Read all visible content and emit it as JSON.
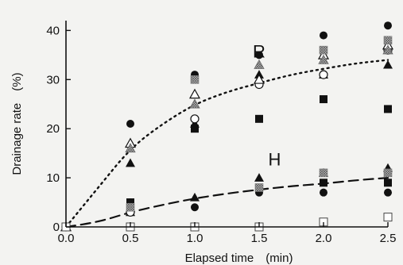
{
  "chart_data": {
    "type": "scatter",
    "xlabel": "Elapsed time　(min)",
    "ylabel": "Drainage rate　(%)",
    "xlim": [
      0,
      2.5
    ],
    "ylim": [
      0,
      42
    ],
    "x_ticks": [
      "0.0",
      "0.5",
      "1.0",
      "1.5",
      "2.0",
      "2.5"
    ],
    "y_ticks": [
      "0",
      "10",
      "20",
      "30",
      "40"
    ],
    "grid": false,
    "legend": "none",
    "series": [
      {
        "marker": "filled-circle",
        "color": "#111111",
        "points": [
          [
            0,
            0
          ],
          [
            0.5,
            21
          ],
          [
            0.5,
            5
          ],
          [
            1.0,
            31
          ],
          [
            1.0,
            4
          ],
          [
            1.5,
            35
          ],
          [
            1.5,
            7
          ],
          [
            2.0,
            39
          ],
          [
            2.0,
            7
          ],
          [
            2.5,
            41
          ],
          [
            2.5,
            7
          ]
        ]
      },
      {
        "marker": "filled-triangle",
        "color": "#111111",
        "points": [
          [
            0,
            0
          ],
          [
            0.5,
            13
          ],
          [
            0.5,
            3
          ],
          [
            1.0,
            21
          ],
          [
            1.0,
            6
          ],
          [
            1.5,
            31
          ],
          [
            1.5,
            10
          ],
          [
            2.0,
            31
          ],
          [
            2.0,
            11
          ],
          [
            2.5,
            33
          ],
          [
            2.5,
            12
          ]
        ]
      },
      {
        "marker": "filled-square",
        "color": "#111111",
        "points": [
          [
            0,
            0
          ],
          [
            0.5,
            5
          ],
          [
            1.0,
            20
          ],
          [
            1.5,
            22
          ],
          [
            2.0,
            26
          ],
          [
            2.0,
            9
          ],
          [
            2.5,
            24
          ],
          [
            2.5,
            9
          ]
        ]
      },
      {
        "marker": "open-circle",
        "color": "#111111",
        "points": [
          [
            0,
            0
          ],
          [
            0.5,
            3
          ],
          [
            1.0,
            22
          ],
          [
            1.5,
            29
          ],
          [
            2.0,
            31
          ],
          [
            2.5,
            36
          ]
        ]
      },
      {
        "marker": "open-triangle",
        "color": "#111111",
        "points": [
          [
            0,
            0
          ],
          [
            0.5,
            17
          ],
          [
            1.0,
            27
          ],
          [
            1.5,
            30
          ],
          [
            2.0,
            35
          ],
          [
            2.5,
            37
          ]
        ]
      },
      {
        "marker": "hatched-square",
        "color": "#777777",
        "points": [
          [
            0,
            0
          ],
          [
            0.5,
            4
          ],
          [
            1.0,
            30
          ],
          [
            1.5,
            8
          ],
          [
            2.0,
            36
          ],
          [
            2.0,
            11
          ],
          [
            2.5,
            38
          ],
          [
            2.5,
            11
          ]
        ]
      },
      {
        "marker": "open-square",
        "color": "#111111",
        "points": [
          [
            0,
            0
          ],
          [
            0.5,
            0
          ],
          [
            1.0,
            0
          ],
          [
            1.5,
            0
          ],
          [
            2.0,
            1
          ],
          [
            2.5,
            2
          ]
        ]
      },
      {
        "marker": "hatched-triangle",
        "color": "#777777",
        "points": [
          [
            0.5,
            16
          ],
          [
            1.0,
            25
          ],
          [
            1.5,
            33
          ],
          [
            2.0,
            34
          ],
          [
            2.5,
            36
          ]
        ]
      }
    ],
    "curves": [
      {
        "name": "R",
        "style": "dotted",
        "points": [
          [
            0,
            0
          ],
          [
            0.25,
            8
          ],
          [
            0.5,
            16
          ],
          [
            0.75,
            21
          ],
          [
            1.0,
            25
          ],
          [
            1.25,
            27.5
          ],
          [
            1.5,
            29.3
          ],
          [
            1.75,
            31
          ],
          [
            2.0,
            32.2
          ],
          [
            2.25,
            33.3
          ],
          [
            2.5,
            34
          ]
        ]
      },
      {
        "name": "H",
        "style": "dashed",
        "points": [
          [
            0,
            0
          ],
          [
            0.25,
            1
          ],
          [
            0.5,
            3
          ],
          [
            0.75,
            4.5
          ],
          [
            1.0,
            5.8
          ],
          [
            1.25,
            6.8
          ],
          [
            1.5,
            7.6
          ],
          [
            1.75,
            8.3
          ],
          [
            2.0,
            8.8
          ],
          [
            2.25,
            9.5
          ],
          [
            2.5,
            10
          ]
        ]
      }
    ],
    "curve_labels": [
      {
        "text": "R",
        "x": 1.5,
        "y": 34.5
      },
      {
        "text": "H",
        "x": 1.62,
        "y": 12.5
      }
    ]
  }
}
